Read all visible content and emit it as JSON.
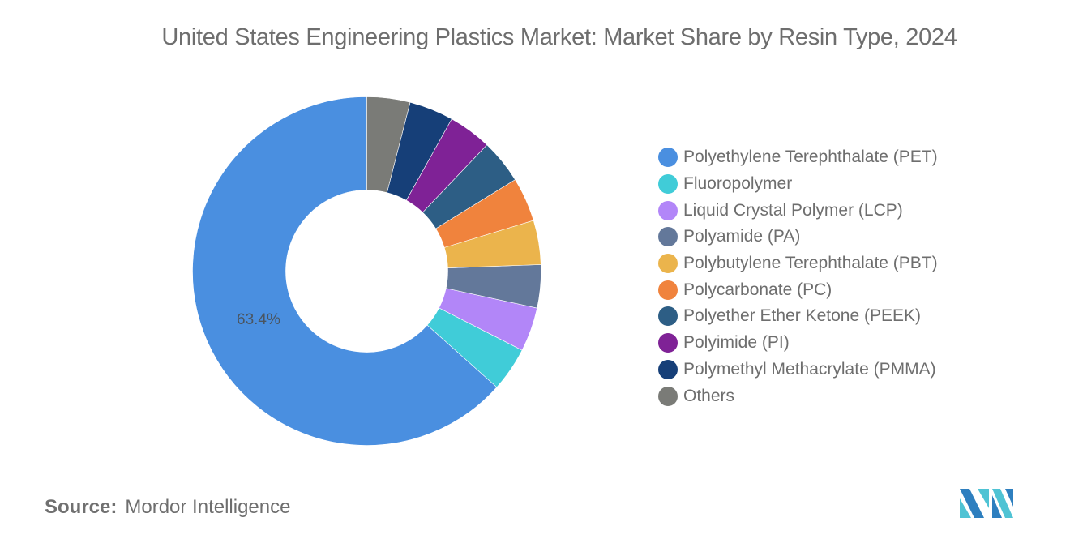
{
  "chart_data": {
    "type": "pie",
    "variant": "donut",
    "title": "United States Engineering Plastics Market: Market Share by Resin Type, 2024",
    "categories": [
      "Polyethylene Terephthalate (PET)",
      "Fluoropolymer",
      "Liquid Crystal Polymer (LCP)",
      "Polyamide (PA)",
      "Polybutylene Terephthalate (PBT)",
      "Polycarbonate (PC)",
      "Polyether Ether Ketone (PEEK)",
      "Polyimide (PI)",
      "Polymethyl Methacrylate (PMMA)",
      "Others"
    ],
    "values": [
      63.4,
      4.1,
      4.1,
      4.0,
      4.1,
      4.1,
      4.1,
      4.0,
      4.1,
      4.0
    ],
    "colors": [
      "#4a8fe0",
      "#40ccd8",
      "#b286f8",
      "#63789a",
      "#ebb44c",
      "#f0833d",
      "#2d5e85",
      "#7f2296",
      "#163f78",
      "#7a7b77"
    ],
    "data_labels": [
      {
        "category": "Polyethylene Terephthalate (PET)",
        "text": "63.4%"
      }
    ],
    "legend_position": "right",
    "start_angle": "12 o'clock, counterclockwise"
  },
  "header": {
    "title": "United States Engineering Plastics Market: Market Share by Resin Type, 2024"
  },
  "legend": {
    "items": [
      {
        "label": "Polyethylene Terephthalate (PET)",
        "color": "#4a8fe0"
      },
      {
        "label": "Fluoropolymer",
        "color": "#40ccd8"
      },
      {
        "label": "Liquid Crystal Polymer (LCP)",
        "color": "#b286f8"
      },
      {
        "label": "Polyamide (PA)",
        "color": "#63789a"
      },
      {
        "label": "Polybutylene Terephthalate (PBT)",
        "color": "#ebb44c"
      },
      {
        "label": "Polycarbonate (PC)",
        "color": "#f0833d"
      },
      {
        "label": "Polyether Ether Ketone (PEEK)",
        "color": "#2d5e85"
      },
      {
        "label": "Polyimide (PI)",
        "color": "#7f2296"
      },
      {
        "label": "Polymethyl Methacrylate (PMMA)",
        "color": "#163f78"
      },
      {
        "label": "Others",
        "color": "#7a7b77"
      }
    ]
  },
  "footer": {
    "source_key": "Source:",
    "source_value": "Mordor Intelligence"
  },
  "logo": {
    "name": "mordor-intelligence-logo",
    "colors": [
      "#2e7fbf",
      "#4fc3d4"
    ]
  }
}
